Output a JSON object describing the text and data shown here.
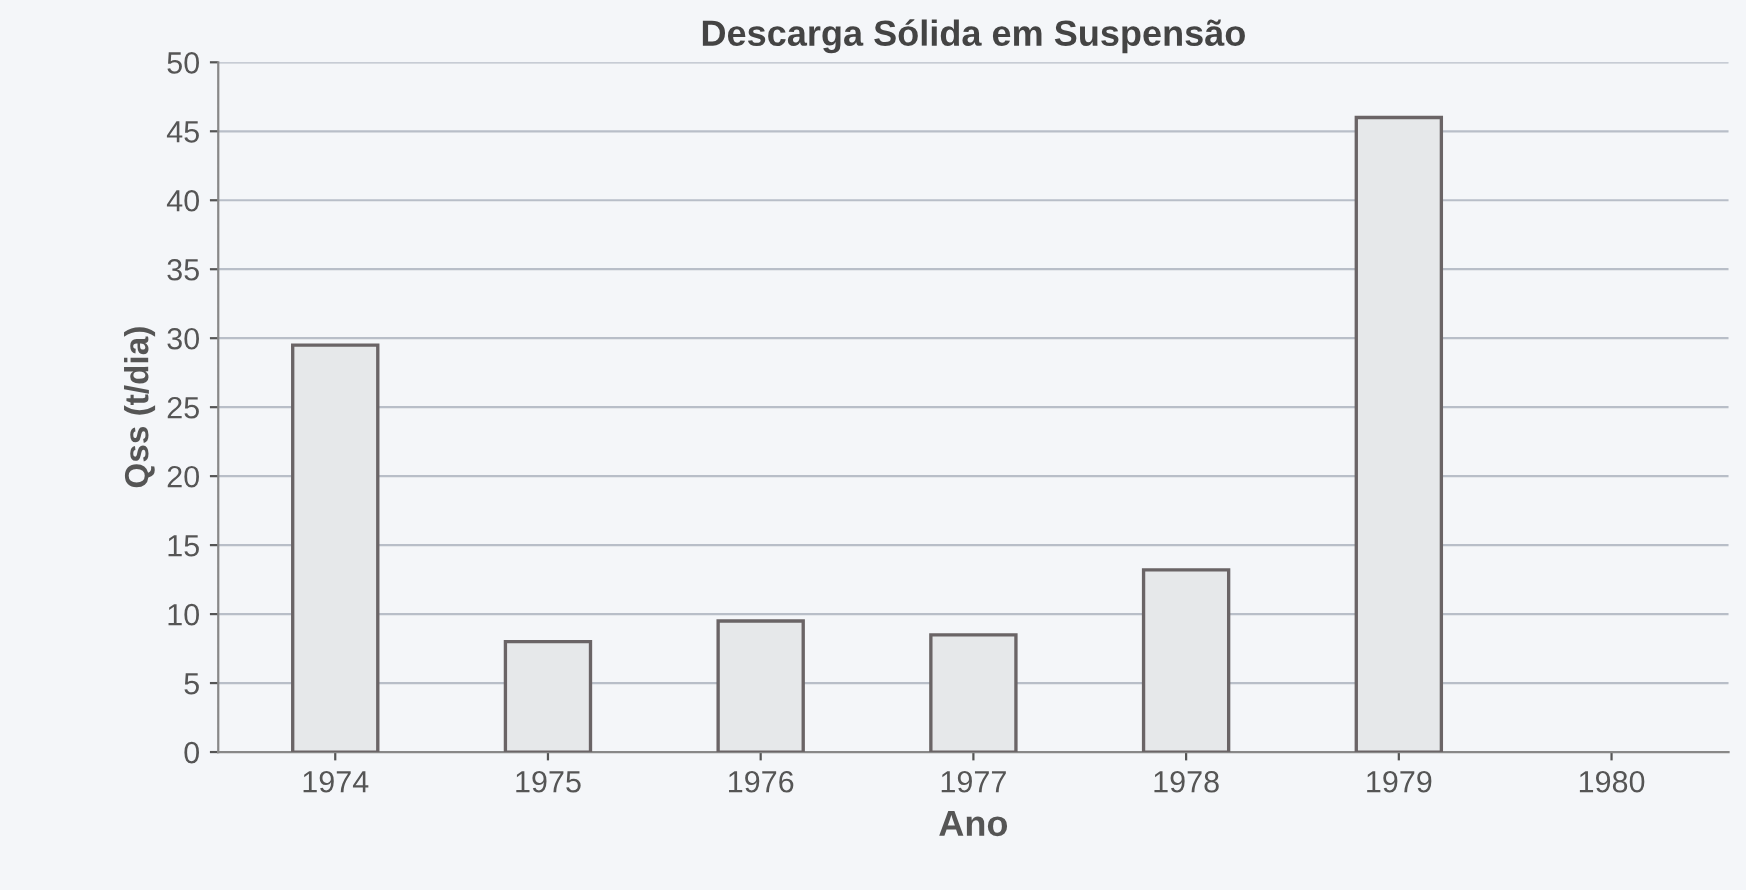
{
  "chart_data": {
    "type": "bar",
    "title": "Descarga Sólida em Suspensão",
    "xlabel": "Ano",
    "ylabel": "Qss (t/dia)",
    "categories": [
      "1974",
      "1975",
      "1976",
      "1977",
      "1978",
      "1979",
      "1980"
    ],
    "values": [
      29.5,
      8,
      9.5,
      8.5,
      13.2,
      46,
      null
    ],
    "color": "#e6e8ea",
    "ylim": [
      0,
      50
    ],
    "yticks": [
      0,
      5,
      10,
      15,
      20,
      25,
      30,
      35,
      40,
      45,
      50
    ],
    "grid": "y"
  }
}
